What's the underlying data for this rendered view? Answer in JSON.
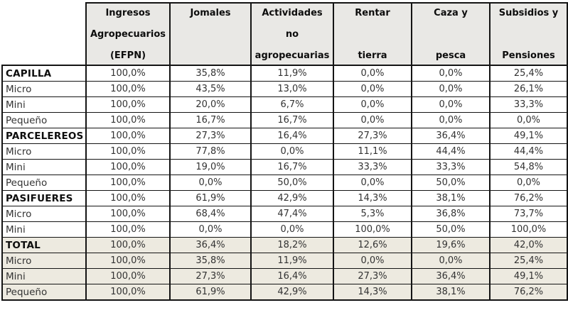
{
  "table": {
    "columns": [
      {
        "lines": [
          "",
          "",
          ""
        ]
      },
      {
        "lines": [
          "Ingresos",
          "Agropecuarios",
          "(EFPN)"
        ]
      },
      {
        "lines": [
          "Jomales",
          "",
          ""
        ]
      },
      {
        "lines": [
          "Actividades",
          "no",
          "agropecuarias"
        ]
      },
      {
        "lines": [
          "Rentar",
          "",
          "tierra"
        ]
      },
      {
        "lines": [
          "Caza y",
          "",
          "pesca"
        ]
      },
      {
        "lines": [
          "Subsidios y",
          "",
          "Pensiones"
        ]
      }
    ],
    "rows": [
      {
        "label": "CAPILLA",
        "bold": true,
        "shaded": false,
        "values": [
          "100,0%",
          "35,8%",
          "11,9%",
          "0,0%",
          "0,0%",
          "25,4%"
        ]
      },
      {
        "label": "Micro",
        "bold": false,
        "shaded": false,
        "values": [
          "100,0%",
          "43,5%",
          "13,0%",
          "0,0%",
          "0,0%",
          "26,1%"
        ]
      },
      {
        "label": "Mini",
        "bold": false,
        "shaded": false,
        "values": [
          "100,0%",
          "20,0%",
          "6,7%",
          "0,0%",
          "0,0%",
          "33,3%"
        ]
      },
      {
        "label": "Pequeño",
        "bold": false,
        "shaded": false,
        "values": [
          "100,0%",
          "16,7%",
          "16,7%",
          "0,0%",
          "0,0%",
          "0,0%"
        ]
      },
      {
        "label": "PARCELEREOS",
        "bold": true,
        "shaded": false,
        "values": [
          "100,0%",
          "27,3%",
          "16,4%",
          "27,3%",
          "36,4%",
          "49,1%"
        ]
      },
      {
        "label": "Micro",
        "bold": false,
        "shaded": false,
        "values": [
          "100,0%",
          "77,8%",
          "0,0%",
          "11,1%",
          "44,4%",
          "44,4%"
        ]
      },
      {
        "label": "Mini",
        "bold": false,
        "shaded": false,
        "values": [
          "100,0%",
          "19,0%",
          "16,7%",
          "33,3%",
          "33,3%",
          "54,8%"
        ]
      },
      {
        "label": "Pequeño",
        "bold": false,
        "shaded": false,
        "values": [
          "100,0%",
          "0,0%",
          "50,0%",
          "0,0%",
          "50,0%",
          "0,0%"
        ]
      },
      {
        "label": "PASIFUERES",
        "bold": true,
        "shaded": false,
        "values": [
          "100,0%",
          "61,9%",
          "42,9%",
          "14,3%",
          "38,1%",
          "76,2%"
        ]
      },
      {
        "label": "Micro",
        "bold": false,
        "shaded": false,
        "values": [
          "100,0%",
          "68,4%",
          "47,4%",
          "5,3%",
          "36,8%",
          "73,7%"
        ]
      },
      {
        "label": "Mini",
        "bold": false,
        "shaded": false,
        "values": [
          "100,0%",
          "0,0%",
          "0,0%",
          "100,0%",
          "50,0%",
          "100,0%"
        ]
      },
      {
        "label": "TOTAL",
        "bold": true,
        "shaded": true,
        "values": [
          "100,0%",
          "36,4%",
          "18,2%",
          "12,6%",
          "19,6%",
          "42,0%"
        ]
      },
      {
        "label": "Micro",
        "bold": false,
        "shaded": true,
        "values": [
          "100,0%",
          "35,8%",
          "11,9%",
          "0,0%",
          "0,0%",
          "25,4%"
        ]
      },
      {
        "label": "Mini",
        "bold": false,
        "shaded": true,
        "values": [
          "100,0%",
          "27,3%",
          "16,4%",
          "27,3%",
          "36,4%",
          "49,1%"
        ]
      },
      {
        "label": "Pequeño",
        "bold": false,
        "shaded": true,
        "values": [
          "100,0%",
          "61,9%",
          "42,9%",
          "14,3%",
          "38,1%",
          "76,2%"
        ]
      }
    ]
  },
  "colors": {
    "border": "#141414",
    "header_bg": "#e9e8e5",
    "shaded_row_bg": "#edeae0",
    "value_text": "#333333",
    "bold_text": "#0d0d0d"
  }
}
